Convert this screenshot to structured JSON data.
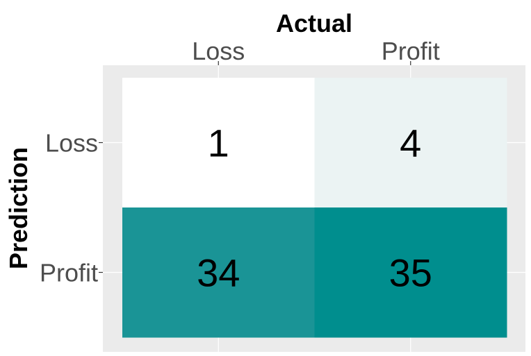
{
  "chart_data": {
    "type": "heatmap",
    "title": "",
    "xlabel": "Actual",
    "ylabel": "Prediction",
    "x_categories": [
      "Loss",
      "Profit"
    ],
    "y_categories": [
      "Loss",
      "Profit"
    ],
    "x_axis_position": "top",
    "grid": true,
    "legend": "none",
    "cells": [
      {
        "actual": "Loss",
        "prediction": "Loss",
        "value": 1,
        "color": "#ffffff"
      },
      {
        "actual": "Profit",
        "prediction": "Loss",
        "value": 4,
        "color": "#ebf3f3"
      },
      {
        "actual": "Loss",
        "prediction": "Profit",
        "value": 34,
        "color": "#1a9496"
      },
      {
        "actual": "Profit",
        "prediction": "Profit",
        "value": 35,
        "color": "#008e8e"
      }
    ],
    "colors": {
      "panel_background": "#ebebeb",
      "grid_line": "#ffffff",
      "tick_label": "#4d4d4d",
      "tick_mark": "#333333"
    }
  }
}
